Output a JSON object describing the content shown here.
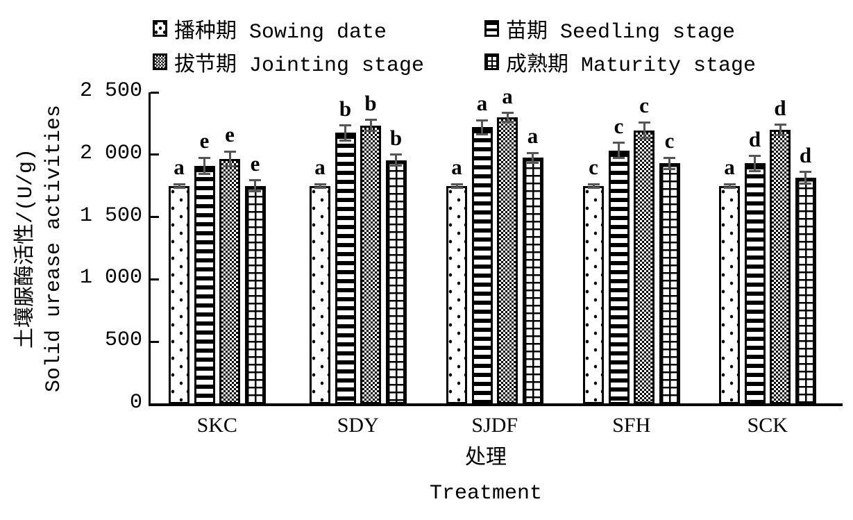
{
  "chart_data": {
    "type": "bar",
    "title": "",
    "categories": [
      "SKC",
      "SDY",
      "SJDF",
      "SFH",
      "SCK"
    ],
    "series": [
      {
        "label": "播种期 Sowing date",
        "pattern": "dots",
        "values": [
          1750,
          1750,
          1750,
          1750,
          1750
        ],
        "errors": [
          15,
          15,
          15,
          15,
          15
        ],
        "sig_letters": [
          "a",
          "a",
          "a",
          "c",
          "a"
        ]
      },
      {
        "label": "苗期 Seedling stage",
        "pattern": "hstripes",
        "values": [
          1910,
          2175,
          2220,
          2035,
          1930
        ],
        "errors": [
          65,
          60,
          55,
          60,
          60
        ],
        "sig_letters": [
          "e",
          "b",
          "a",
          "c",
          "d"
        ]
      },
      {
        "label": "拔节期 Jointing stage",
        "pattern": "checker",
        "values": [
          1965,
          2235,
          2300,
          2195,
          2200
        ],
        "errors": [
          60,
          45,
          35,
          65,
          40
        ],
        "sig_letters": [
          "e",
          "b",
          "a",
          "c",
          "d"
        ]
      },
      {
        "label": "成熟期 Maturity stage",
        "pattern": "grid",
        "values": [
          1750,
          1955,
          1975,
          1930,
          1815
        ],
        "errors": [
          45,
          45,
          40,
          45,
          45
        ],
        "sig_letters": [
          "e",
          "b",
          "a",
          "c",
          "d"
        ]
      }
    ],
    "ylabel_zh": "土壤脲酶活性/(U/g)",
    "ylabel_en": "Solid urease activities",
    "xlabel_zh": "处理",
    "xlabel_en": "Treatment",
    "y_ticks": [
      "0",
      "500",
      "1 000",
      "1 500",
      "2 000",
      "2 500"
    ],
    "ylim": [
      0,
      2500
    ],
    "grid": false,
    "legend_position": "top",
    "bar_outline_color": "#000000",
    "error_bar_color": "#555555",
    "background_color": "#ffffff"
  }
}
